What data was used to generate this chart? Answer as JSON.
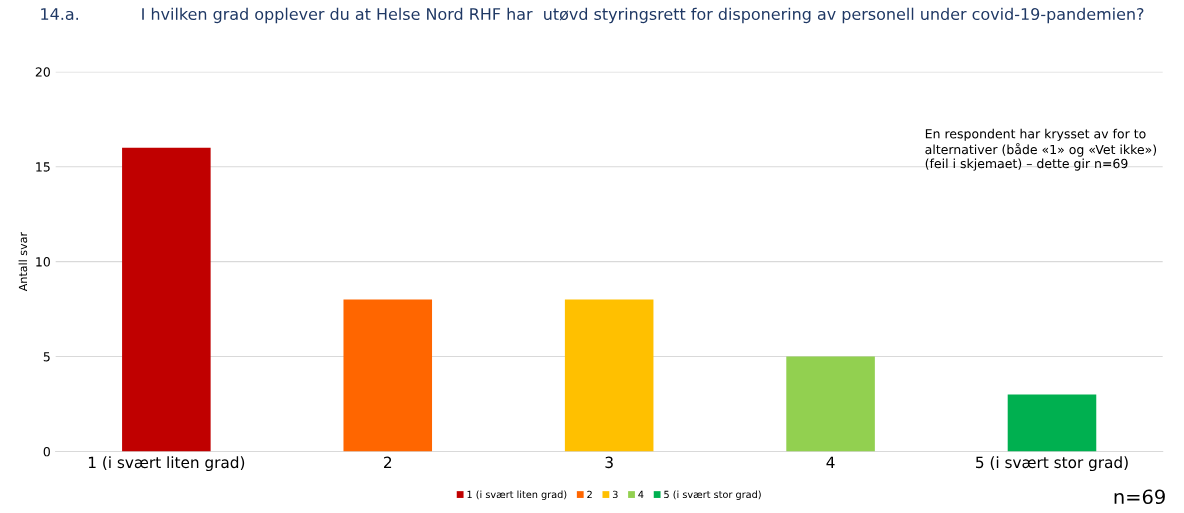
{
  "chart_data": {
    "type": "bar",
    "title": "14.a.            I hvilken grad opplever du at Helse Nord RHF har  utøvd styringsrett for disponering av personell under covid-19-pandemien?",
    "ylabel": "Antall svar",
    "categories": [
      "1 (i svært liten grad)",
      "2",
      "3",
      "4",
      "5 (i svært stor grad)"
    ],
    "series": [
      {
        "name": "1 (i svært liten grad)",
        "color": "#c00000",
        "values": [
          16,
          null,
          null,
          null,
          null
        ]
      },
      {
        "name": "2",
        "color": "#ff6600",
        "values": [
          null,
          8,
          null,
          null,
          null
        ]
      },
      {
        "name": "3",
        "color": "#ffc000",
        "values": [
          null,
          null,
          8,
          null,
          null
        ]
      },
      {
        "name": "4",
        "color": "#92d050",
        "values": [
          null,
          null,
          null,
          5,
          null
        ]
      },
      {
        "name": "5 (i svært stor grad)",
        "color": "#00b050",
        "values": [
          null,
          null,
          null,
          null,
          3
        ]
      }
    ],
    "ylim": [
      0,
      20
    ],
    "yticks": [
      0,
      5,
      10,
      15,
      20
    ],
    "grid": "y",
    "legend": "bottom",
    "annotations": [
      "En respondent har krysset av for to\nalternativer (både «1» og «Vet ikke»)\n(feil i skjemaet) – dette gir n=69",
      "n=69"
    ]
  }
}
